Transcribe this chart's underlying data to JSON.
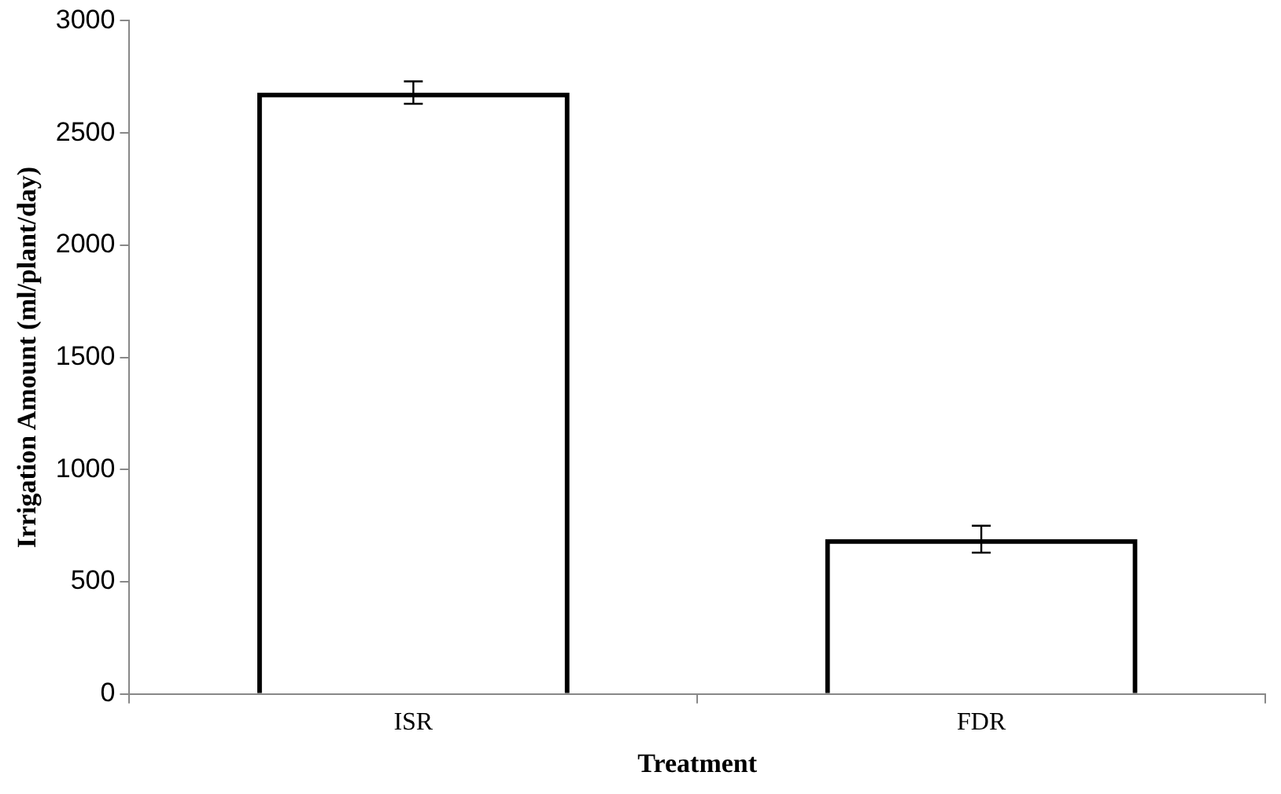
{
  "chart_data": {
    "type": "bar",
    "xlabel": "Treatment",
    "ylabel": "Irrigation Amount (ml/plant/day)",
    "categories": [
      "ISR",
      "FDR"
    ],
    "series": [
      {
        "color": "#000000",
        "values": [
          2680,
          690
        ],
        "errors": [
          50,
          60
        ]
      }
    ],
    "ylim": [
      0,
      3000
    ],
    "yticks": [
      0,
      500,
      1000,
      1500,
      2000,
      2500,
      3000
    ],
    "grid": false,
    "legend": false
  }
}
